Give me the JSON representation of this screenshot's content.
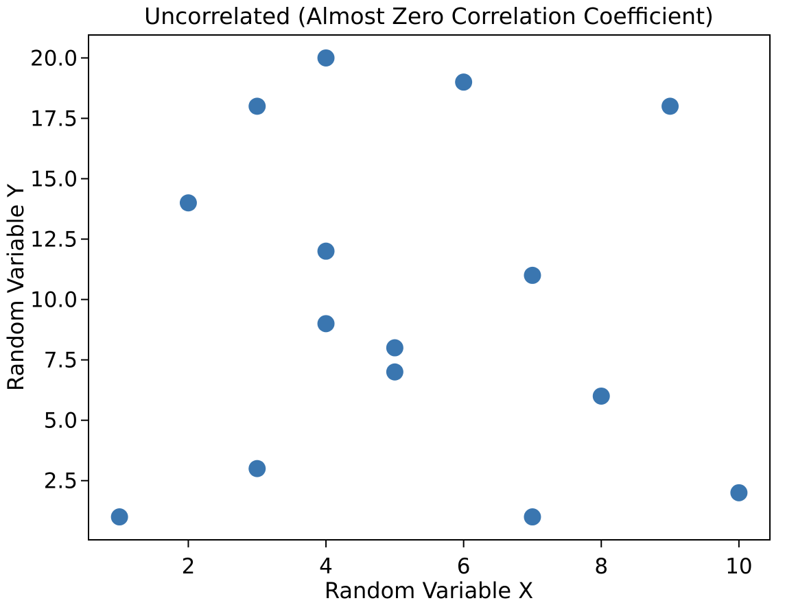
{
  "chart_data": {
    "type": "scatter",
    "title": "Uncorrelated (Almost Zero Correlation Coefficient)",
    "xlabel": "Random Variable X",
    "ylabel": "Random Variable Y",
    "points": [
      {
        "x": 1,
        "y": 1
      },
      {
        "x": 2,
        "y": 14
      },
      {
        "x": 3,
        "y": 3
      },
      {
        "x": 3,
        "y": 18
      },
      {
        "x": 4,
        "y": 9
      },
      {
        "x": 4,
        "y": 12
      },
      {
        "x": 4,
        "y": 20
      },
      {
        "x": 5,
        "y": 7
      },
      {
        "x": 5,
        "y": 8
      },
      {
        "x": 6,
        "y": 19
      },
      {
        "x": 7,
        "y": 1
      },
      {
        "x": 7,
        "y": 11
      },
      {
        "x": 8,
        "y": 6
      },
      {
        "x": 9,
        "y": 18
      },
      {
        "x": 10,
        "y": 2
      }
    ],
    "xlim": [
      0.55,
      10.45
    ],
    "ylim": [
      0.05,
      20.95
    ],
    "x_ticks": [
      2,
      4,
      6,
      8,
      10
    ],
    "x_tick_labels": [
      "2",
      "4",
      "6",
      "8",
      "10"
    ],
    "y_ticks": [
      2.5,
      5,
      7.5,
      10,
      12.5,
      15,
      17.5,
      20
    ],
    "y_tick_labels": [
      "2.5",
      "5.0",
      "7.5",
      "10.0",
      "12.5",
      "15.0",
      "17.5",
      "20.0"
    ],
    "grid": false,
    "legend": "none",
    "marker_color": "#3a76b0",
    "spine_color": "#000000",
    "text_color": "#000000",
    "background_color": "#ffffff"
  }
}
